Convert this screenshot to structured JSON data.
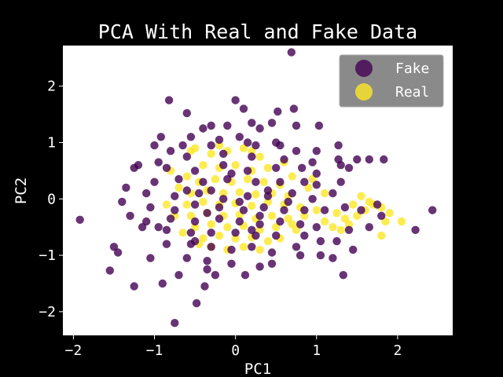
{
  "chart_data": {
    "type": "scatter",
    "title": "PCA With Real and Fake Data",
    "xlabel": "PC1",
    "ylabel": "PC2",
    "xlim": [
      -2.13,
      2.68
    ],
    "ylim": [
      -2.42,
      2.72
    ],
    "xticks": [
      -2,
      -1,
      0,
      1,
      2
    ],
    "xtick_labels": [
      "−2",
      "−1",
      "0",
      "1",
      "2"
    ],
    "yticks": [
      -2,
      -1,
      0,
      1,
      2
    ],
    "ytick_labels": [
      "−2",
      "−1",
      "0",
      "1",
      "2"
    ],
    "grid": false,
    "legend_position": "top-right",
    "background": "#ffffff",
    "series": [
      {
        "name": "Real",
        "color": "#fde725",
        "points": [
          [
            -0.5,
            0.9
          ],
          [
            -0.3,
            0.8
          ],
          [
            -0.1,
            0.85
          ],
          [
            0.1,
            0.9
          ],
          [
            0.3,
            0.75
          ],
          [
            -0.4,
            0.6
          ],
          [
            -0.2,
            0.55
          ],
          [
            0.0,
            0.6
          ],
          [
            0.2,
            0.5
          ],
          [
            0.4,
            0.55
          ],
          [
            -0.6,
            0.4
          ],
          [
            -0.45,
            0.3
          ],
          [
            -0.25,
            0.35
          ],
          [
            -0.05,
            0.3
          ],
          [
            0.15,
            0.35
          ],
          [
            0.35,
            0.3
          ],
          [
            0.55,
            0.25
          ],
          [
            -0.55,
            0.1
          ],
          [
            -0.35,
            0.15
          ],
          [
            -0.15,
            0.1
          ],
          [
            0.05,
            0.12
          ],
          [
            0.25,
            0.08
          ],
          [
            0.45,
            0.1
          ],
          [
            0.65,
            0.05
          ],
          [
            -0.6,
            -0.1
          ],
          [
            -0.4,
            -0.05
          ],
          [
            -0.2,
            -0.1
          ],
          [
            0.0,
            -0.08
          ],
          [
            0.2,
            -0.12
          ],
          [
            0.4,
            -0.05
          ],
          [
            0.6,
            -0.1
          ],
          [
            0.8,
            -0.15
          ],
          [
            -0.55,
            -0.3
          ],
          [
            -0.35,
            -0.25
          ],
          [
            -0.15,
            -0.3
          ],
          [
            0.05,
            -0.28
          ],
          [
            0.25,
            -0.35
          ],
          [
            0.45,
            -0.3
          ],
          [
            0.65,
            -0.35
          ],
          [
            0.85,
            -0.3
          ],
          [
            -0.5,
            -0.5
          ],
          [
            -0.3,
            -0.45
          ],
          [
            -0.1,
            -0.5
          ],
          [
            0.1,
            -0.48
          ],
          [
            0.3,
            -0.55
          ],
          [
            0.5,
            -0.5
          ],
          [
            0.7,
            -0.45
          ],
          [
            -0.4,
            -0.7
          ],
          [
            -0.2,
            -0.65
          ],
          [
            0.0,
            -0.7
          ],
          [
            0.2,
            -0.68
          ],
          [
            0.4,
            -0.75
          ],
          [
            -0.3,
            -0.85
          ],
          [
            -0.1,
            -0.9
          ],
          [
            0.1,
            -0.85
          ],
          [
            -0.75,
            -0.3
          ],
          [
            -0.7,
            0.2
          ],
          [
            -0.65,
            -0.6
          ],
          [
            0.7,
            0.4
          ],
          [
            0.9,
            0.2
          ],
          [
            1.0,
            -0.2
          ],
          [
            1.1,
            -0.4
          ],
          [
            1.2,
            -0.5
          ],
          [
            1.3,
            -0.55
          ],
          [
            1.4,
            -0.45
          ],
          [
            1.5,
            -0.3
          ],
          [
            1.6,
            -0.2
          ],
          [
            1.7,
            -0.1
          ],
          [
            1.8,
            -0.15
          ],
          [
            1.9,
            -0.25
          ],
          [
            1.45,
            -0.1
          ],
          [
            1.55,
            0.05
          ],
          [
            1.65,
            -0.05
          ],
          [
            1.35,
            -0.35
          ],
          [
            1.25,
            -0.25
          ],
          [
            1.85,
            -0.4
          ],
          [
            1.8,
            -0.65
          ],
          [
            2.05,
            -0.4
          ],
          [
            1.1,
            0.1
          ],
          [
            0.95,
            0.35
          ],
          [
            -0.55,
            0.85
          ],
          [
            -0.2,
            0.95
          ],
          [
            0.2,
            0.85
          ],
          [
            0.6,
            0.65
          ],
          [
            -0.8,
            0.5
          ],
          [
            -0.85,
            -0.1
          ],
          [
            0.75,
            -0.55
          ],
          [
            0.55,
            -0.7
          ],
          [
            0.3,
            -0.9
          ],
          [
            -0.45,
            -0.8
          ]
        ]
      },
      {
        "name": "Fake",
        "color": "#440154",
        "points": [
          [
            0.69,
            2.6
          ],
          [
            -0.82,
            1.75
          ],
          [
            0.72,
            1.6
          ],
          [
            0.0,
            1.75
          ],
          [
            -0.6,
            1.52
          ],
          [
            0.1,
            1.6
          ],
          [
            0.52,
            1.55
          ],
          [
            -0.3,
            1.3
          ],
          [
            0.45,
            1.35
          ],
          [
            0.75,
            1.3
          ],
          [
            0.3,
            1.25
          ],
          [
            -0.92,
            1.1
          ],
          [
            -0.4,
            1.25
          ],
          [
            1.03,
            1.3
          ],
          [
            -0.1,
            1.3
          ],
          [
            0.2,
            1.35
          ],
          [
            -0.55,
            1.1
          ],
          [
            0.05,
            1.1
          ],
          [
            0.5,
            1.0
          ],
          [
            -1.0,
            0.95
          ],
          [
            -0.8,
            0.85
          ],
          [
            -0.3,
            0.95
          ],
          [
            0.25,
            0.95
          ],
          [
            0.75,
            0.85
          ],
          [
            1.0,
            0.85
          ],
          [
            1.27,
            0.95
          ],
          [
            -1.2,
            0.6
          ],
          [
            -0.95,
            0.65
          ],
          [
            -0.6,
            0.75
          ],
          [
            -0.15,
            0.8
          ],
          [
            0.2,
            0.75
          ],
          [
            0.6,
            0.7
          ],
          [
            0.95,
            0.65
          ],
          [
            1.27,
            0.7
          ],
          [
            1.5,
            0.7
          ],
          [
            1.65,
            0.7
          ],
          [
            1.83,
            0.7
          ],
          [
            -1.25,
            0.55
          ],
          [
            -0.85,
            0.55
          ],
          [
            -0.5,
            0.5
          ],
          [
            -0.15,
            0.6
          ],
          [
            0.15,
            0.5
          ],
          [
            0.5,
            0.55
          ],
          [
            0.82,
            0.55
          ],
          [
            1.0,
            0.45
          ],
          [
            1.3,
            0.6
          ],
          [
            1.4,
            0.55
          ],
          [
            -1.35,
            0.2
          ],
          [
            -1.0,
            0.3
          ],
          [
            -0.7,
            0.35
          ],
          [
            -0.4,
            0.3
          ],
          [
            -0.1,
            0.35
          ],
          [
            0.25,
            0.3
          ],
          [
            0.55,
            0.3
          ],
          [
            0.85,
            0.3
          ],
          [
            1.0,
            0.25
          ],
          [
            1.3,
            0.3
          ],
          [
            -1.1,
            0.1
          ],
          [
            -0.75,
            0.05
          ],
          [
            -0.45,
            0.1
          ],
          [
            -0.15,
            0.0
          ],
          [
            0.15,
            0.05
          ],
          [
            0.4,
            0.05
          ],
          [
            0.7,
            0.1
          ],
          [
            0.95,
            0.0
          ],
          [
            1.2,
            0.1
          ],
          [
            -1.4,
            -0.05
          ],
          [
            -1.05,
            -0.15
          ],
          [
            -0.75,
            -0.2
          ],
          [
            -0.5,
            -0.1
          ],
          [
            -0.2,
            -0.15
          ],
          [
            0.1,
            -0.2
          ],
          [
            0.35,
            -0.15
          ],
          [
            0.6,
            -0.2
          ],
          [
            0.85,
            -0.2
          ],
          [
            1.1,
            -0.2
          ],
          [
            1.35,
            -0.15
          ],
          [
            -1.1,
            -0.4
          ],
          [
            -0.8,
            -0.35
          ],
          [
            -0.5,
            -0.4
          ],
          [
            -0.2,
            -0.35
          ],
          [
            0.05,
            -0.4
          ],
          [
            0.3,
            -0.45
          ],
          [
            0.55,
            -0.4
          ],
          [
            0.8,
            -0.45
          ],
          [
            1.0,
            -0.5
          ],
          [
            1.4,
            -0.55
          ],
          [
            -1.15,
            -0.5
          ],
          [
            -0.85,
            -0.55
          ],
          [
            -0.55,
            -0.6
          ],
          [
            -0.3,
            -0.6
          ],
          [
            0.0,
            -0.6
          ],
          [
            0.25,
            -0.65
          ],
          [
            0.5,
            -0.65
          ],
          [
            0.85,
            -0.65
          ],
          [
            1.25,
            -0.75
          ],
          [
            -0.85,
            -0.8
          ],
          [
            -0.55,
            -0.8
          ],
          [
            -0.3,
            -0.85
          ],
          [
            -0.05,
            -0.9
          ],
          [
            0.2,
            -0.85
          ],
          [
            0.45,
            -0.95
          ],
          [
            0.8,
            -1.0
          ],
          [
            1.05,
            -1.0
          ],
          [
            1.45,
            -0.9
          ],
          [
            -1.05,
            -1.05
          ],
          [
            -0.6,
            -1.05
          ],
          [
            -0.35,
            -1.1
          ],
          [
            -0.05,
            -1.15
          ],
          [
            0.3,
            -1.2
          ],
          [
            -0.7,
            -1.35
          ],
          [
            -0.35,
            -1.25
          ],
          [
            -0.25,
            -1.35
          ],
          [
            0.12,
            -1.35
          ],
          [
            0.45,
            -1.15
          ],
          [
            1.33,
            -1.35
          ],
          [
            1.2,
            -1.05
          ],
          [
            -0.9,
            -1.5
          ],
          [
            -0.38,
            -1.55
          ],
          [
            -0.48,
            -1.85
          ],
          [
            -0.75,
            -2.2
          ],
          [
            -1.25,
            -1.55
          ],
          [
            -1.55,
            -1.27
          ],
          [
            -1.45,
            -0.95
          ],
          [
            -1.5,
            -0.85
          ],
          [
            -1.92,
            -0.37
          ],
          [
            -0.95,
            -0.5
          ],
          [
            -1.3,
            -0.3
          ],
          [
            -0.65,
            0.95
          ],
          [
            0.55,
            0.95
          ],
          [
            1.8,
            -0.3
          ],
          [
            1.65,
            -0.5
          ],
          [
            1.05,
            -0.75
          ],
          [
            0.75,
            -0.85
          ],
          [
            2.22,
            -0.55
          ],
          [
            2.43,
            -0.2
          ],
          [
            1.75,
            -0.1
          ],
          [
            1.55,
            -0.2
          ],
          [
            0.15,
            1.0
          ],
          [
            -0.2,
            1.05
          ],
          [
            0.4,
            0.15
          ],
          [
            -0.3,
            0.15
          ],
          [
            0.05,
            -0.05
          ],
          [
            0.3,
            -0.3
          ],
          [
            -0.35,
            -0.25
          ],
          [
            -0.6,
            0.15
          ],
          [
            0.65,
            -0.05
          ],
          [
            -0.05,
            0.45
          ],
          [
            0.2,
            -0.55
          ],
          [
            -0.5,
            -0.75
          ]
        ]
      }
    ]
  }
}
